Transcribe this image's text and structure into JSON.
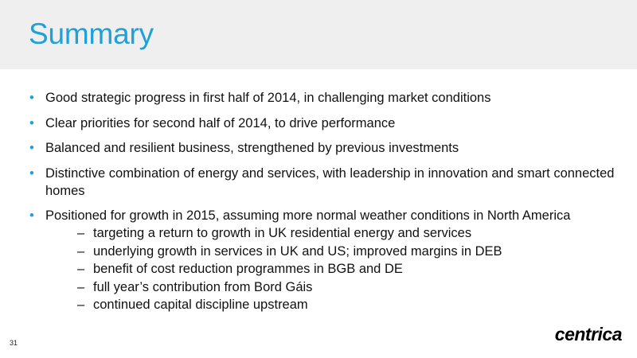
{
  "slide": {
    "title": "Summary",
    "bullets": [
      {
        "text": "Good strategic progress in first half of 2014, in challenging market conditions"
      },
      {
        "text": "Clear priorities for second half of 2014, to drive performance"
      },
      {
        "text": "Balanced and resilient business, strengthened by previous investments"
      },
      {
        "text": "Distinctive combination of energy and services, with leadership in innovation and smart connected homes"
      },
      {
        "text": "Positioned for growth in 2015, assuming more normal weather conditions in North America"
      }
    ],
    "sub_bullets": [
      "targeting a return to growth in UK residential energy and services",
      "underlying growth in services in UK and US; improved margins in DEB",
      "benefit of cost reduction programmes in BGB and DE",
      "full year’s contribution from Bord Gáis",
      "continued capital discipline upstream"
    ],
    "page_number": "31",
    "logo_text": "centrica",
    "colors": {
      "accent": "#1fa0d8",
      "band": "#efefef"
    }
  }
}
